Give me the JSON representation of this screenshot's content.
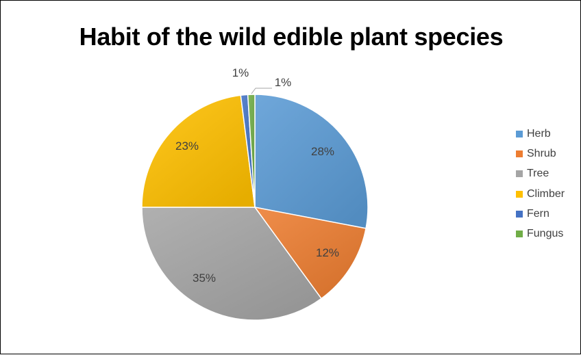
{
  "chart_data": {
    "type": "pie",
    "title": "Habit of the wild edible plant species",
    "slices": [
      {
        "name": "Herb",
        "value": 28,
        "label": "28%",
        "color": "#5B9BD5"
      },
      {
        "name": "Shrub",
        "value": 12,
        "label": "12%",
        "color": "#ED7D31"
      },
      {
        "name": "Tree",
        "value": 35,
        "label": "35%",
        "color": "#A5A5A5"
      },
      {
        "name": "Climber",
        "value": 23,
        "label": "23%",
        "color": "#FFC000"
      },
      {
        "name": "Fern",
        "value": 1,
        "label": "1%",
        "color": "#4472C4"
      },
      {
        "name": "Fungus",
        "value": 1,
        "label": "1%",
        "color": "#70AD47"
      }
    ],
    "legend_position": "right"
  }
}
